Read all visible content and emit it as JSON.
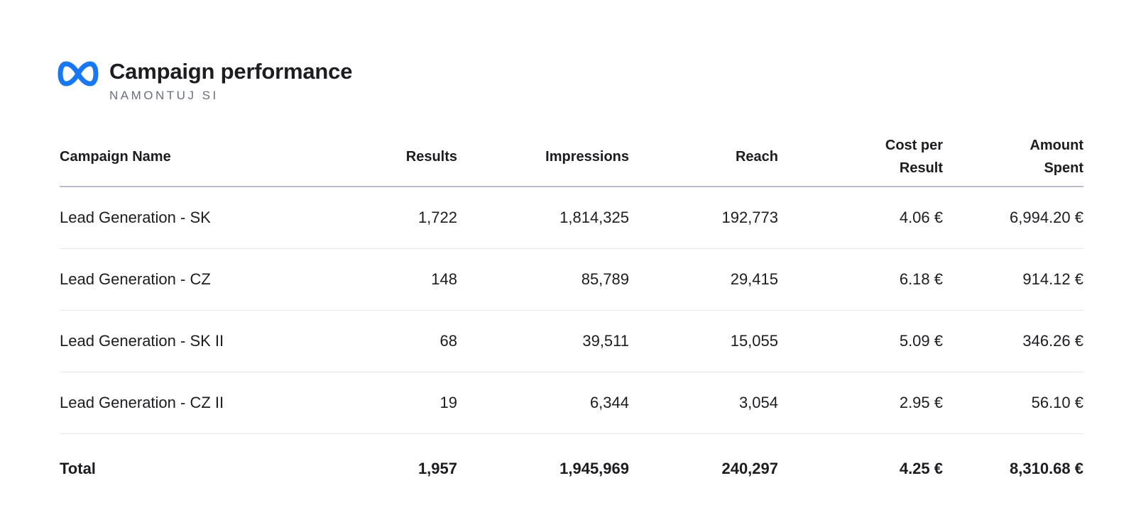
{
  "header": {
    "title": "Campaign performance",
    "subtitle": "NAMONTUJ SI",
    "logo_icon": "meta-infinity-icon",
    "logo_color": "#1877f2"
  },
  "table": {
    "columns": [
      {
        "label": "Campaign Name"
      },
      {
        "label": "Results"
      },
      {
        "label": "Impressions"
      },
      {
        "label": "Reach"
      },
      {
        "label_line1": "Cost per",
        "label_line2": "Result"
      },
      {
        "label_line1": "Amount",
        "label_line2": "Spent"
      }
    ],
    "rows": [
      {
        "name": "Lead Generation - SK",
        "results": "1,722",
        "impressions": "1,814,325",
        "reach": "192,773",
        "cost_per_result": "4.06 €",
        "amount_spent": "6,994.20 €"
      },
      {
        "name": "Lead Generation - CZ",
        "results": "148",
        "impressions": "85,789",
        "reach": "29,415",
        "cost_per_result": "6.18 €",
        "amount_spent": "914.12 €"
      },
      {
        "name": "Lead Generation - SK II",
        "results": "68",
        "impressions": "39,511",
        "reach": "15,055",
        "cost_per_result": "5.09 €",
        "amount_spent": "346.26 €"
      },
      {
        "name": "Lead Generation - CZ II",
        "results": "19",
        "impressions": "6,344",
        "reach": "3,054",
        "cost_per_result": "2.95 €",
        "amount_spent": "56.10 €"
      }
    ],
    "total": {
      "name": "Total",
      "results": "1,957",
      "impressions": "1,945,969",
      "reach": "240,297",
      "cost_per_result": "4.25 €",
      "amount_spent": "8,310.68 €"
    }
  }
}
